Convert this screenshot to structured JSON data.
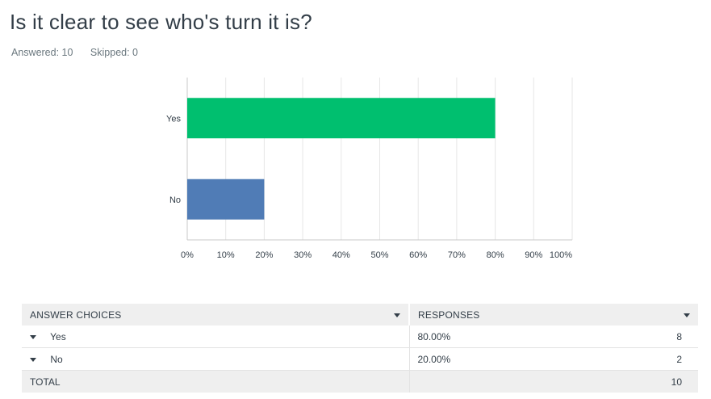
{
  "question": {
    "title": "Is it clear to see who's turn it is?",
    "answered": "Answered: 10",
    "skipped": "Skipped: 0"
  },
  "chart_data": {
    "type": "bar",
    "orientation": "horizontal",
    "categories": [
      "Yes",
      "No"
    ],
    "values": [
      80,
      20
    ],
    "colors": [
      "#00bf6f",
      "#507cb6"
    ],
    "xlim": [
      0,
      100
    ],
    "xticks": [
      "0%",
      "10%",
      "20%",
      "30%",
      "40%",
      "50%",
      "60%",
      "70%",
      "80%",
      "90%",
      "100%"
    ],
    "grid": true,
    "title": "",
    "xlabel": "",
    "ylabel": ""
  },
  "table": {
    "headers": [
      "ANSWER CHOICES",
      "RESPONSES"
    ],
    "rows": [
      {
        "choice": "Yes",
        "percent": "80.00%",
        "count": "8"
      },
      {
        "choice": "No",
        "percent": "20.00%",
        "count": "2"
      }
    ],
    "total_label": "TOTAL",
    "total_count": "10"
  }
}
